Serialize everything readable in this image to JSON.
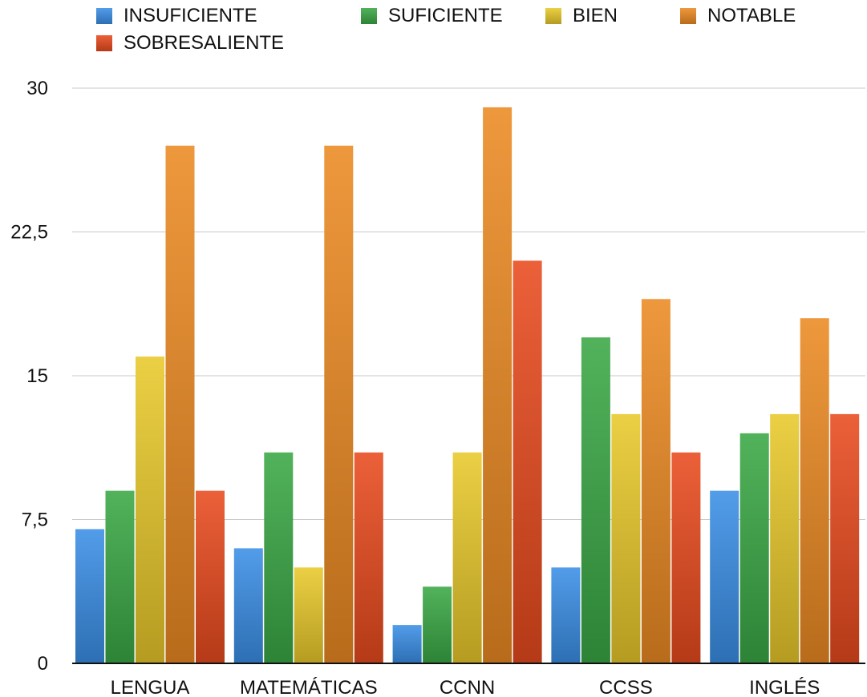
{
  "chart_data": {
    "type": "bar",
    "categories": [
      "LENGUA",
      "MATEMÁTICAS",
      "CCNN",
      "CCSS",
      "INGLÉS"
    ],
    "series": [
      {
        "name": "INSUFICIENTE",
        "values": [
          7,
          6,
          2,
          5,
          9
        ],
        "color": "#3a8ee6"
      },
      {
        "name": "SUFICIENTE",
        "values": [
          9,
          11,
          4,
          17,
          12
        ],
        "color": "#3aa845"
      },
      {
        "name": "BIEN",
        "values": [
          16,
          5,
          11,
          13,
          13
        ],
        "color": "#e8c82a"
      },
      {
        "name": "NOTABLE",
        "values": [
          27,
          27,
          29,
          19,
          18
        ],
        "color": "#ec8a22"
      },
      {
        "name": "SOBRESALIENTE",
        "values": [
          9,
          11,
          21,
          11,
          13
        ],
        "color": "#e84a1e"
      }
    ],
    "y_ticks": [
      "0",
      "7,5",
      "15",
      "22,5",
      "30"
    ],
    "ylim": [
      0,
      30
    ],
    "grid": true,
    "legend": "top"
  }
}
